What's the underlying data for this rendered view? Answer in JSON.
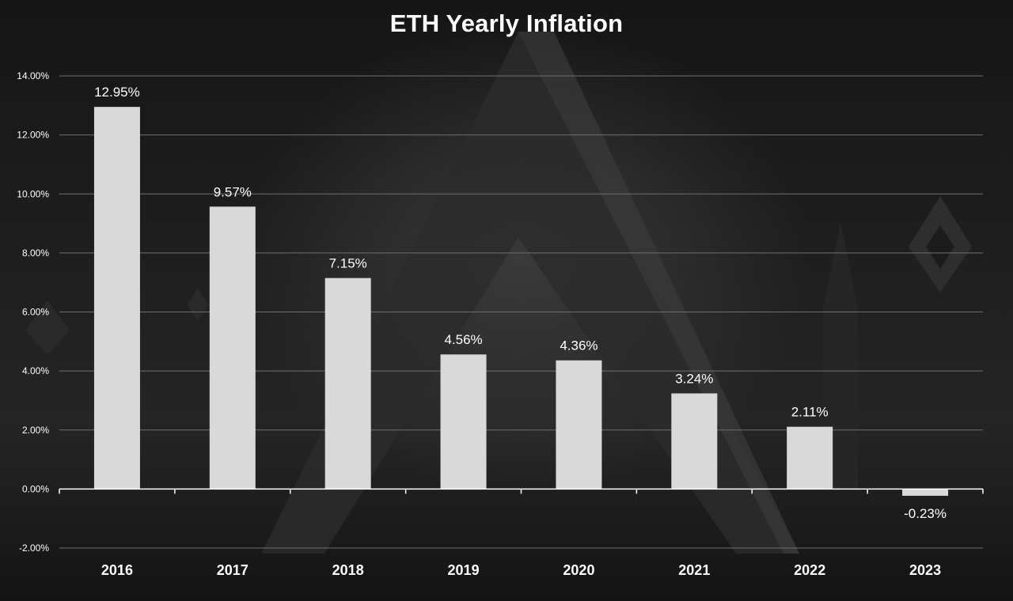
{
  "chart_data": {
    "type": "bar",
    "title": "ETH Yearly Inflation",
    "xlabel": "",
    "ylabel": "",
    "categories": [
      "2016",
      "2017",
      "2018",
      "2019",
      "2020",
      "2021",
      "2022",
      "2023"
    ],
    "values": [
      12.95,
      9.57,
      7.15,
      4.56,
      4.36,
      3.24,
      2.11,
      -0.23
    ],
    "data_labels": [
      "12.95%",
      "9.57%",
      "7.15%",
      "4.56%",
      "4.36%",
      "3.24%",
      "2.11%",
      "-0.23%"
    ],
    "y_ticks": [
      -2,
      0,
      2,
      4,
      6,
      8,
      10,
      12,
      14
    ],
    "y_tick_labels": [
      "-2.00%",
      "0.00%",
      "2.00%",
      "4.00%",
      "6.00%",
      "8.00%",
      "10.00%",
      "12.00%",
      "14.00%"
    ],
    "ylim": [
      -2,
      14
    ],
    "grid": true,
    "legend": "none",
    "colors": {
      "bar": "#d9d9d9",
      "text": "#ffffff",
      "grid": "#6f6f6f"
    }
  }
}
